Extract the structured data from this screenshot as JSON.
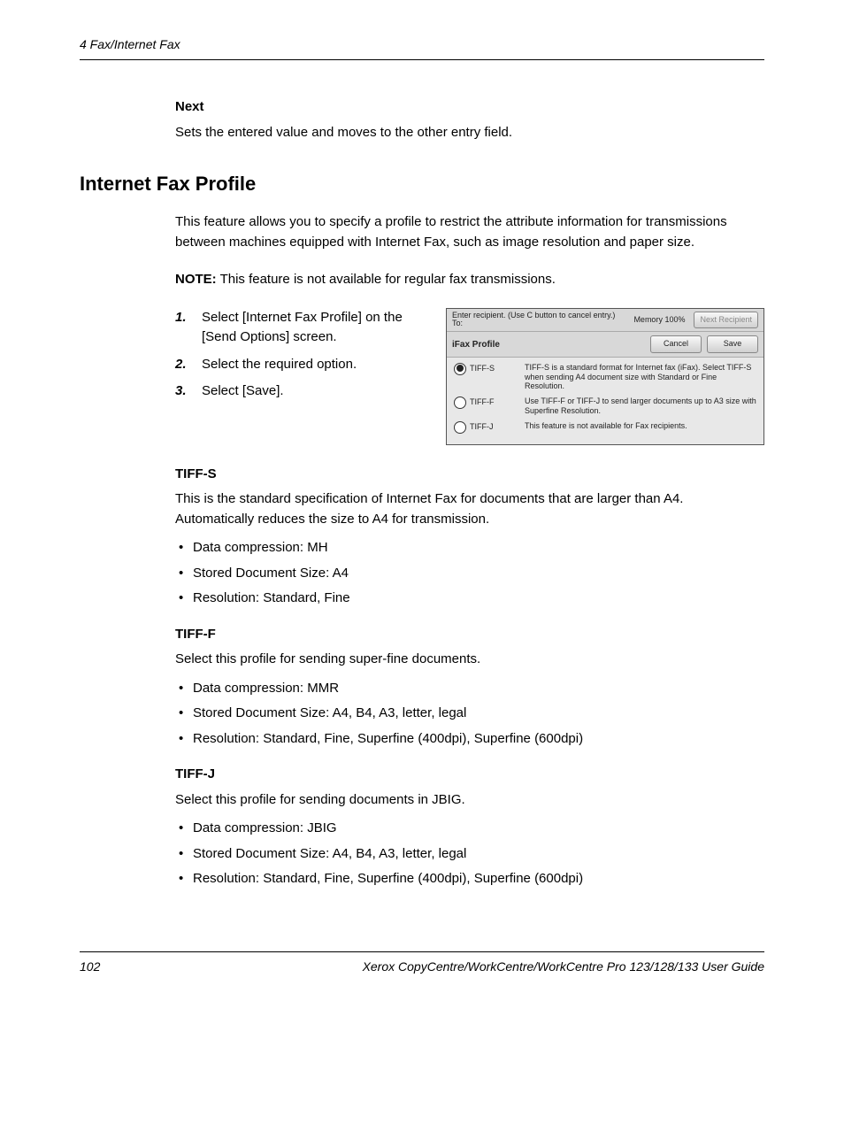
{
  "header": {
    "chapter": "4  Fax/Internet Fax"
  },
  "section1": {
    "heading": "Next",
    "text": "Sets the entered value and moves to the other entry field."
  },
  "section2": {
    "title": "Internet Fax Profile",
    "intro": "This feature allows you to specify a profile to restrict the attribute information for transmissions between machines equipped with Internet Fax, such as image resolution and paper size.",
    "note_label": "NOTE:",
    "note_text": " This feature is not available for regular fax transmissions.",
    "steps": [
      {
        "num": "1.",
        "text": "Select [Internet Fax Profile] on the [Send Options] screen."
      },
      {
        "num": "2.",
        "text": "Select the required option."
      },
      {
        "num": "3.",
        "text": "Select [Save]."
      }
    ]
  },
  "figure": {
    "top_line1": "Enter recipient. (Use C button to cancel entry.)",
    "top_line2": "To:",
    "memory": "Memory 100%",
    "btn_next": "Next Recipient",
    "sub_label": "iFax Profile",
    "btn_cancel": "Cancel",
    "btn_save": "Save",
    "options": [
      {
        "label": "TIFF-S",
        "selected": true,
        "desc": "TIFF-S is a standard format for Internet fax (iFax). Select TIFF-S when sending A4 document size with Standard or Fine Resolution."
      },
      {
        "label": "TIFF-F",
        "selected": false,
        "desc": "Use TIFF-F or TIFF-J to send larger documents up to A3 size with Superfine Resolution."
      },
      {
        "label": "TIFF-J",
        "selected": false,
        "desc": "This feature is not available for Fax recipients."
      }
    ]
  },
  "tiff_s": {
    "heading": "TIFF-S",
    "para": "This is the standard specification of Internet Fax for documents that are larger than A4. Automatically reduces the size to A4 for transmission.",
    "bullets": [
      "Data compression: MH",
      "Stored Document Size: A4",
      "Resolution: Standard, Fine"
    ]
  },
  "tiff_f": {
    "heading": "TIFF-F",
    "para": "Select this profile for sending super-fine documents.",
    "bullets": [
      "Data compression: MMR",
      "Stored Document Size: A4, B4, A3, letter, legal",
      "Resolution: Standard, Fine, Superfine (400dpi), Superfine (600dpi)"
    ]
  },
  "tiff_j": {
    "heading": "TIFF-J",
    "para": "Select this profile for sending documents in JBIG.",
    "bullets": [
      "Data compression: JBIG",
      "Stored Document Size: A4, B4, A3, letter, legal",
      "Resolution: Standard, Fine, Superfine (400dpi), Superfine (600dpi)"
    ]
  },
  "footer": {
    "page": "102",
    "title": "Xerox CopyCentre/WorkCentre/WorkCentre Pro 123/128/133 User Guide"
  }
}
